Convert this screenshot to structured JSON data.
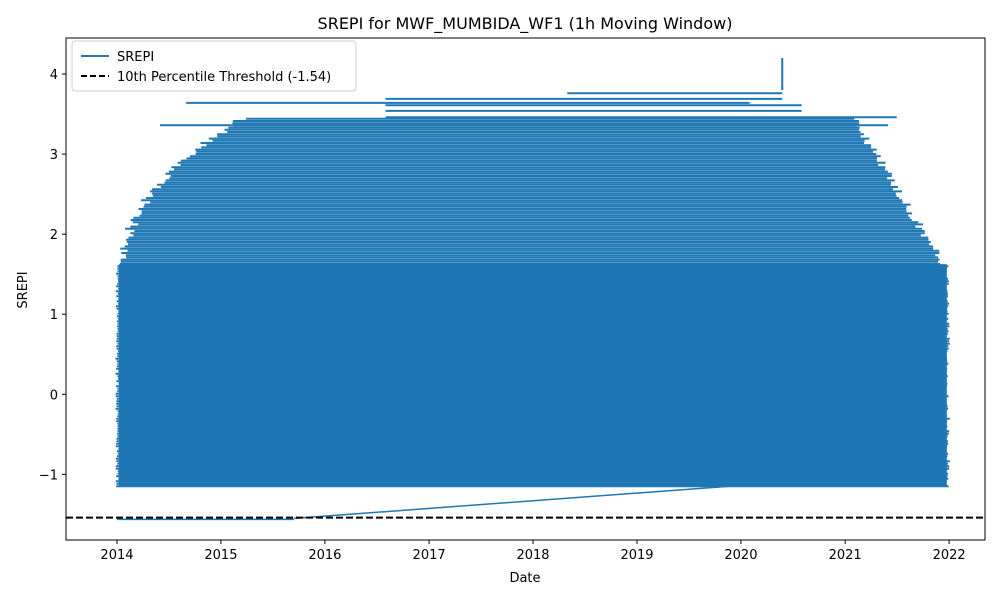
{
  "chart_data": {
    "type": "line",
    "title": "SREPI for MWF_MUMBIDA_WF1 (1h Moving Window)",
    "xlabel": "Date",
    "ylabel": "SREPI",
    "xlim": [
      "2013-07-06",
      "2022-05-07"
    ],
    "ylim": [
      -1.82,
      4.45
    ],
    "x_ticks": [
      "2014",
      "2015",
      "2016",
      "2017",
      "2018",
      "2019",
      "2020",
      "2021",
      "2022"
    ],
    "y_ticks": [
      -1,
      0,
      1,
      2,
      3,
      4
    ],
    "y_tick_labels": [
      "−1",
      "0",
      "1",
      "2",
      "3",
      "4"
    ],
    "grid": false,
    "legend_position": "upper left",
    "colors": {
      "series": "#1f77b4",
      "threshold": "#000000"
    },
    "series": [
      {
        "name": "SREPI",
        "style": "solid",
        "dense_band": {
          "x_start": "2014-01-01",
          "x_end": "2021-12-31",
          "y_min": -1.15,
          "y_max_typical": 1.6
        },
        "notable_points": [
          {
            "x": "2020-05-25",
            "y": 4.2
          },
          {
            "x": "2020-05-25",
            "y": 3.8
          },
          {
            "x": "2018-05-01",
            "y": 3.76
          },
          {
            "x": "2014-09-01",
            "y": 3.64
          },
          {
            "x": "2016-08-01",
            "y": 3.69
          },
          {
            "x": "2020-08-01",
            "y": 3.61
          },
          {
            "x": "2015-09-15",
            "y": -1.55
          },
          {
            "x": "2020-02-01",
            "y": -1.13
          }
        ],
        "min_value": -1.55,
        "max_value": 4.2
      },
      {
        "name": "10th Percentile Threshold (-1.54)",
        "style": "dashed",
        "y": -1.54
      }
    ]
  }
}
